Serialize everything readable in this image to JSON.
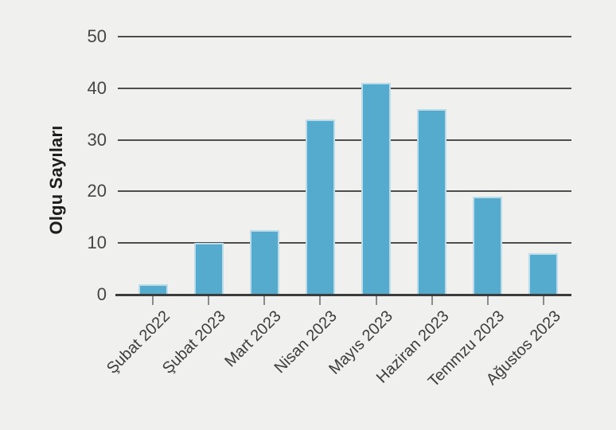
{
  "chart_data": {
    "type": "bar",
    "categories": [
      "Şubat 2022",
      "Şubat 2023",
      "Mart 2023",
      "Nisan 2023",
      "Mayıs 2023",
      "Haziran 2023",
      "Temmzu 2023",
      "Ağustos 2023"
    ],
    "values": [
      2,
      10,
      12.5,
      34,
      41,
      36,
      19,
      8
    ],
    "title": "",
    "xlabel": "",
    "ylabel": "Olgu Sayıları",
    "ylim": [
      0,
      50
    ],
    "yticks": [
      0,
      10,
      20,
      30,
      40,
      50
    ],
    "grid": "horizontal-gridlines-on",
    "legend": "none",
    "colors": {
      "background": "#f0f0ef",
      "bar_fill": "#55abce",
      "bar_border": "#bcdcea",
      "gridline": "#4d4d4d",
      "axis_line": "#3c3c3c",
      "tick_mark": "#8a8a8a",
      "tick_label_color": "#454545",
      "axis_label_color": "#1d1d1d"
    }
  }
}
